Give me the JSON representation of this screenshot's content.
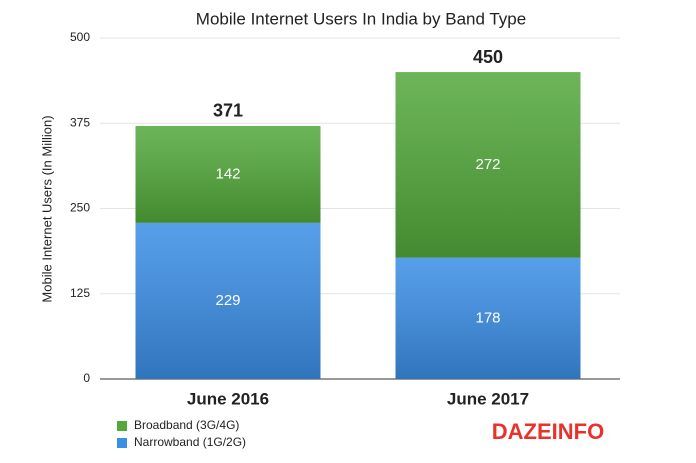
{
  "chart_data": {
    "type": "stacked-bar",
    "title": "Mobile Internet Users In India by Band Type",
    "y_label": "Mobile Internet Users (In Million)",
    "categories": [
      "June 2016",
      "June 2017"
    ],
    "series": [
      {
        "name": "Narrowband (1G/2G)",
        "color": "#3a8ee6",
        "values": [
          229,
          178
        ]
      },
      {
        "name": "Broadband (3G/4G)",
        "color": "#52a83a",
        "values": [
          142,
          272
        ]
      }
    ],
    "totals": [
      371,
      450
    ],
    "ylim": [
      0,
      500
    ],
    "yticks": [
      0,
      125,
      250,
      375,
      500
    ],
    "grid": true,
    "watermark": "DAZEINFO"
  }
}
